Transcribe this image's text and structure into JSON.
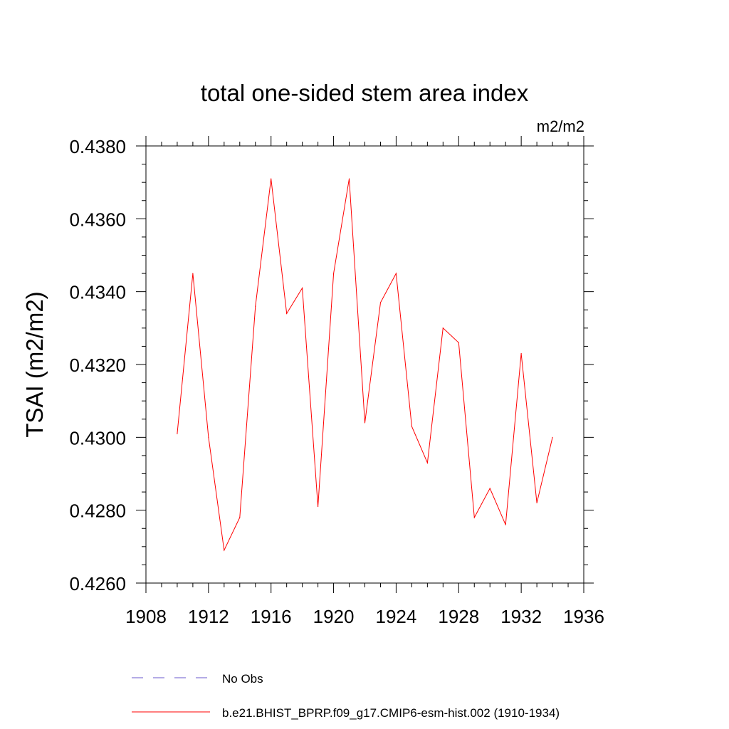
{
  "chart_data": {
    "type": "line",
    "title": "total one-sided stem area index",
    "units_label": "m2/m2",
    "ylabel": "TSAI  (m2/m2)",
    "xlabel": "",
    "xlim": [
      1908,
      1936
    ],
    "ylim": [
      0.426,
      0.438
    ],
    "x_ticks": [
      "1908",
      "1912",
      "1916",
      "1920",
      "1924",
      "1928",
      "1932",
      "1936"
    ],
    "y_ticks": [
      "0.4260",
      "0.4280",
      "0.4300",
      "0.4320",
      "0.4340",
      "0.4360",
      "0.4380"
    ],
    "grid": false,
    "series": [
      {
        "name": "b.e21.BHIST_BPRP.f09_g17.CMIP6-esm-hist.002 (1910-1934)",
        "color": "#ff0000",
        "style": "solid",
        "x": [
          1910,
          1911,
          1912,
          1913,
          1914,
          1915,
          1916,
          1917,
          1918,
          1919,
          1920,
          1921,
          1922,
          1923,
          1924,
          1925,
          1926,
          1927,
          1928,
          1929,
          1930,
          1931,
          1932,
          1933,
          1934
        ],
        "y": [
          0.4301,
          0.4345,
          0.43,
          0.4269,
          0.4278,
          0.4336,
          0.4371,
          0.4334,
          0.4341,
          0.4281,
          0.4345,
          0.4371,
          0.4304,
          0.4337,
          0.4345,
          0.4303,
          0.4293,
          0.433,
          0.4326,
          0.4278,
          0.4286,
          0.4276,
          0.4323,
          0.4282,
          0.43
        ]
      }
    ],
    "legend": [
      {
        "label": "No Obs",
        "color": "#6a5acd",
        "style": "dashed"
      },
      {
        "label": "b.e21.BHIST_BPRP.f09_g17.CMIP6-esm-hist.002 (1910-1934)",
        "color": "#ff0000",
        "style": "solid"
      }
    ],
    "legend_placement": "bottom"
  }
}
